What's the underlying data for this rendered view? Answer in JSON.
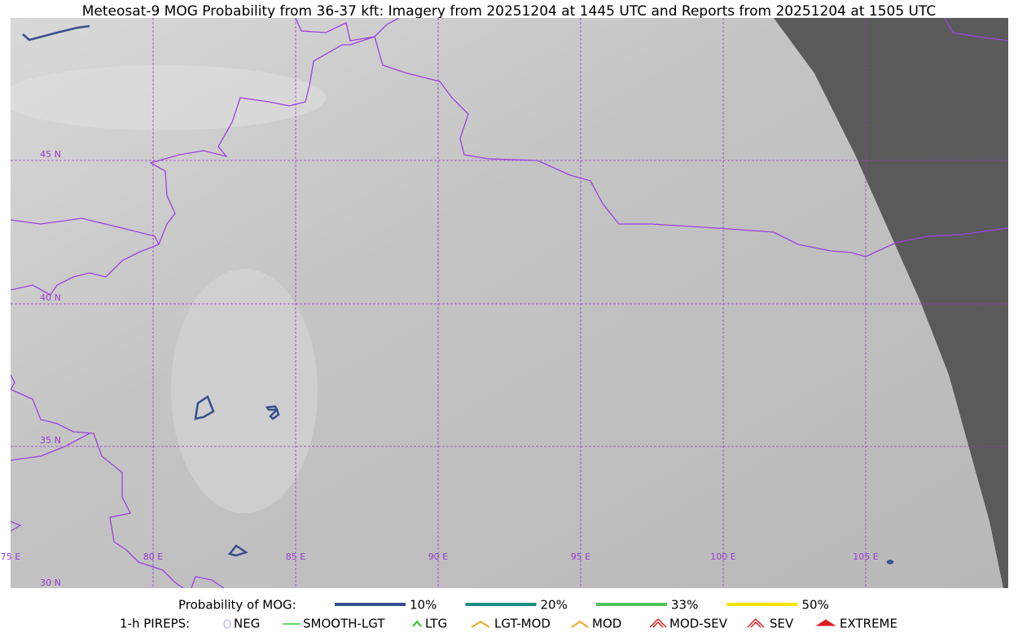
{
  "title": "Meteosat-9 MOG Probability from 36-37 kft: Imagery from 20251204 at 1445 UTC and Reports from 20251204 at 1505 UTC",
  "latitude_labels": [
    "45 N",
    "40 N",
    "35 N",
    "30 N"
  ],
  "longitude_labels": [
    "75 E",
    "80 E",
    "85 E",
    "90 E",
    "95 E",
    "100 E",
    "105 E"
  ],
  "legend": {
    "probability_label": "Probability of MOG:",
    "probability_levels": [
      {
        "label": "10%",
        "color": "#34508e"
      },
      {
        "label": "20%",
        "color": "#148c80"
      },
      {
        "label": "33%",
        "color": "#4cc35a"
      },
      {
        "label": "50%",
        "color": "#f5e400"
      }
    ],
    "pireps_label": "1-h PIREPS:",
    "pirep_types": [
      {
        "label": "NEG",
        "color": "#c0c0ff"
      },
      {
        "label": "SMOOTH-LGT",
        "color": "#33cc33"
      },
      {
        "label": "LTG",
        "color": "#22cc22"
      },
      {
        "label": "LGT-MOD",
        "color": "#f0a820"
      },
      {
        "label": "MOD",
        "color": "#f0a820"
      },
      {
        "label": "MOD-SEV",
        "color": "#e02020"
      },
      {
        "label": "SEV",
        "color": "#e02020"
      },
      {
        "label": "EXTREME",
        "color": "#e02020"
      }
    ]
  }
}
